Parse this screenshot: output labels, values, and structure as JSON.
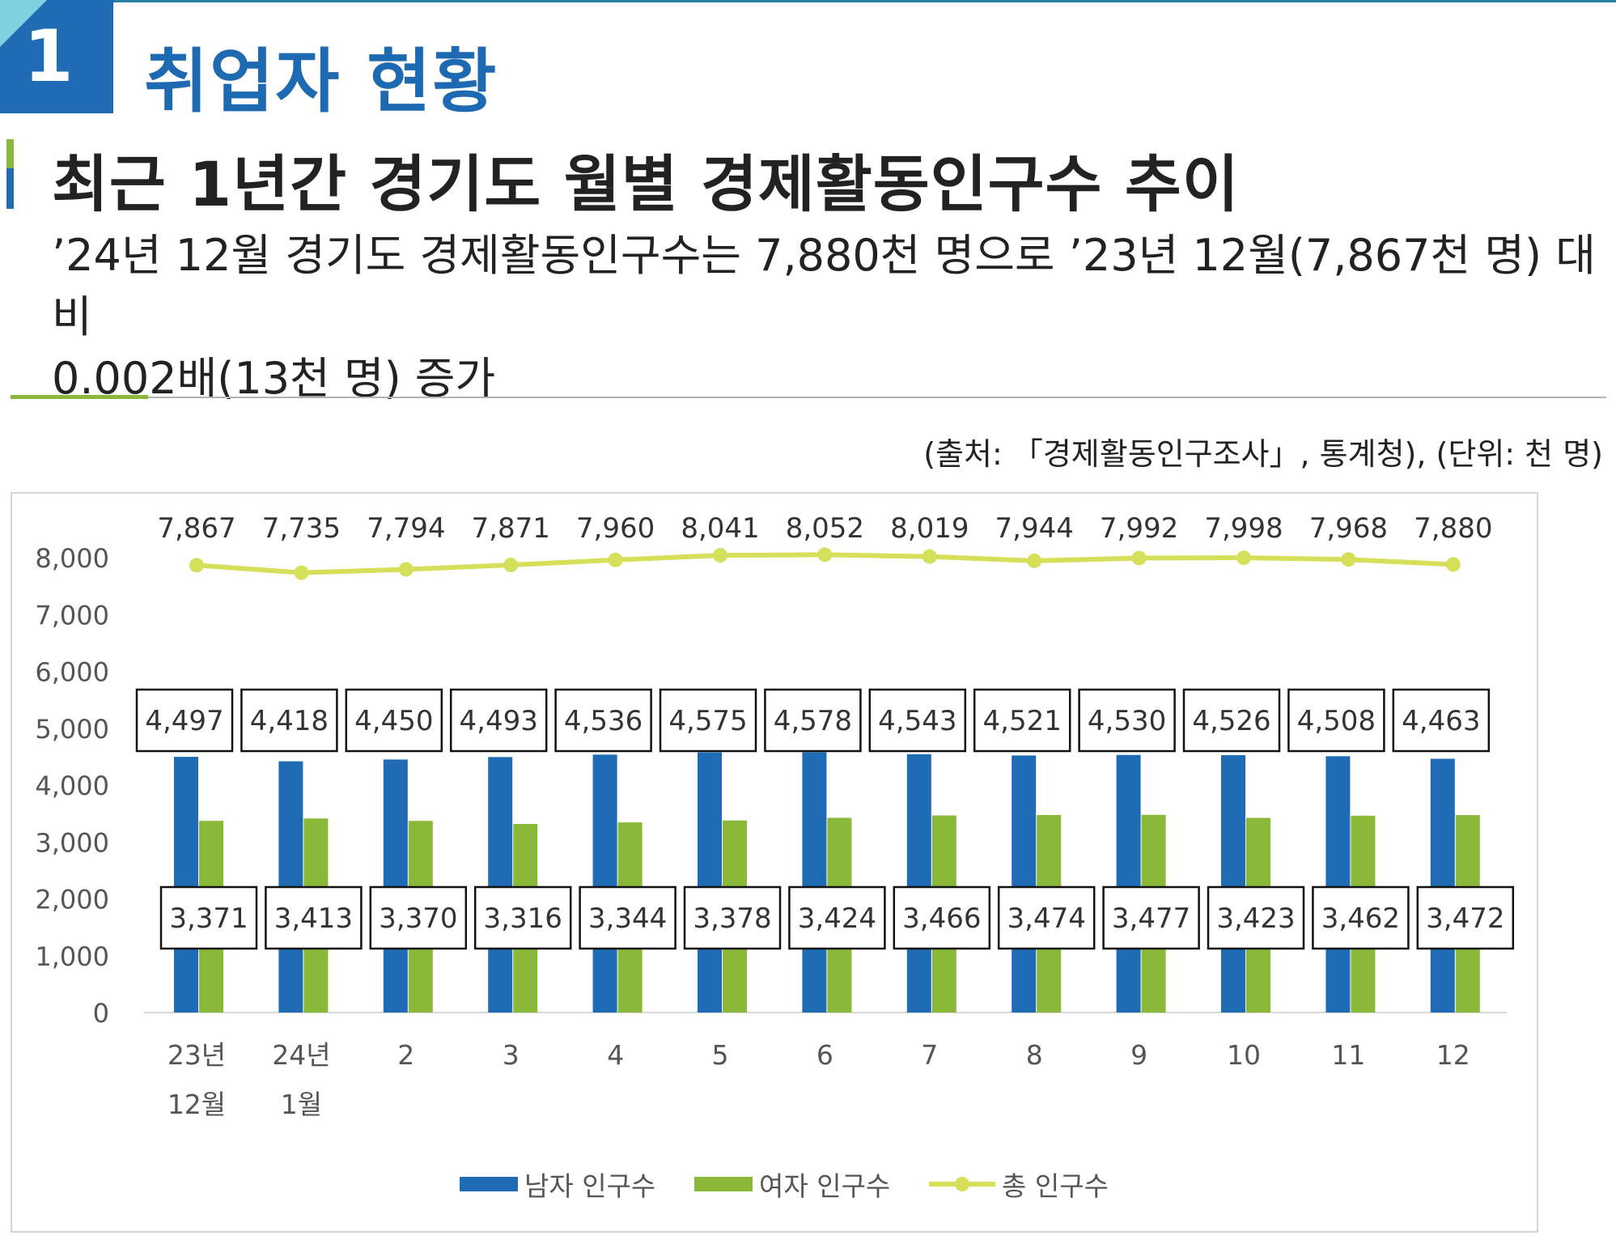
{
  "section": {
    "number": "1",
    "title": "취업자 현황"
  },
  "subtitle": "최근 1년간 경기도 월별 경제활동인구수 추이",
  "description": {
    "line1": "’24년 12월 경기도 경제활동인구수는 7,880천 명으로 ’23년 12월(7,867천 명) 대비",
    "line2": "0.002배(13천 명) 증가"
  },
  "source": "(출처: 「경제활동인구조사」, 통계청), (단위: 천 명)",
  "colors": {
    "male": "#1f6cb5",
    "female": "#8ab93a",
    "total": "#d6df5a",
    "accent": "#1e6ab2"
  },
  "chart_data": {
    "type": "bar",
    "categories": [
      [
        "23년",
        "12월"
      ],
      [
        "24년",
        "1월"
      ],
      [
        "2"
      ],
      [
        "3"
      ],
      [
        "4"
      ],
      [
        "5"
      ],
      [
        "6"
      ],
      [
        "7"
      ],
      [
        "8"
      ],
      [
        "9"
      ],
      [
        "10"
      ],
      [
        "11"
      ],
      [
        "12"
      ]
    ],
    "series": [
      {
        "name": "남자 인구수",
        "type": "bar",
        "color": "#1f6cb5",
        "values": [
          4497,
          4418,
          4450,
          4493,
          4536,
          4575,
          4578,
          4543,
          4521,
          4530,
          4526,
          4508,
          4463
        ],
        "labels": [
          "4,497",
          "4,418",
          "4,450",
          "4,493",
          "4,536",
          "4,575",
          "4,578",
          "4,543",
          "4,521",
          "4,530",
          "4,526",
          "4,508",
          "4,463"
        ]
      },
      {
        "name": "여자 인구수",
        "type": "bar",
        "color": "#8ab93a",
        "values": [
          3371,
          3413,
          3370,
          3316,
          3344,
          3378,
          3424,
          3466,
          3474,
          3477,
          3423,
          3462,
          3472
        ],
        "labels": [
          "3,371",
          "3,413",
          "3,370",
          "3,316",
          "3,344",
          "3,378",
          "3,424",
          "3,466",
          "3,474",
          "3,477",
          "3,423",
          "3,462",
          "3,472"
        ]
      },
      {
        "name": "총 인구수",
        "type": "line",
        "color": "#d6df5a",
        "values": [
          7867,
          7735,
          7794,
          7871,
          7960,
          8041,
          8052,
          8019,
          7944,
          7992,
          7998,
          7968,
          7880
        ],
        "labels": [
          "7,867",
          "7,735",
          "7,794",
          "7,871",
          "7,960",
          "8,041",
          "8,052",
          "8,019",
          "7,944",
          "7,992",
          "7,998",
          "7,968",
          "7,880"
        ]
      }
    ],
    "ylim": [
      0,
      8000
    ],
    "yticks": [
      "0",
      "1,000",
      "2,000",
      "3,000",
      "4,000",
      "5,000",
      "6,000",
      "7,000",
      "8,000"
    ],
    "legend_position": "bottom",
    "grid": false
  }
}
